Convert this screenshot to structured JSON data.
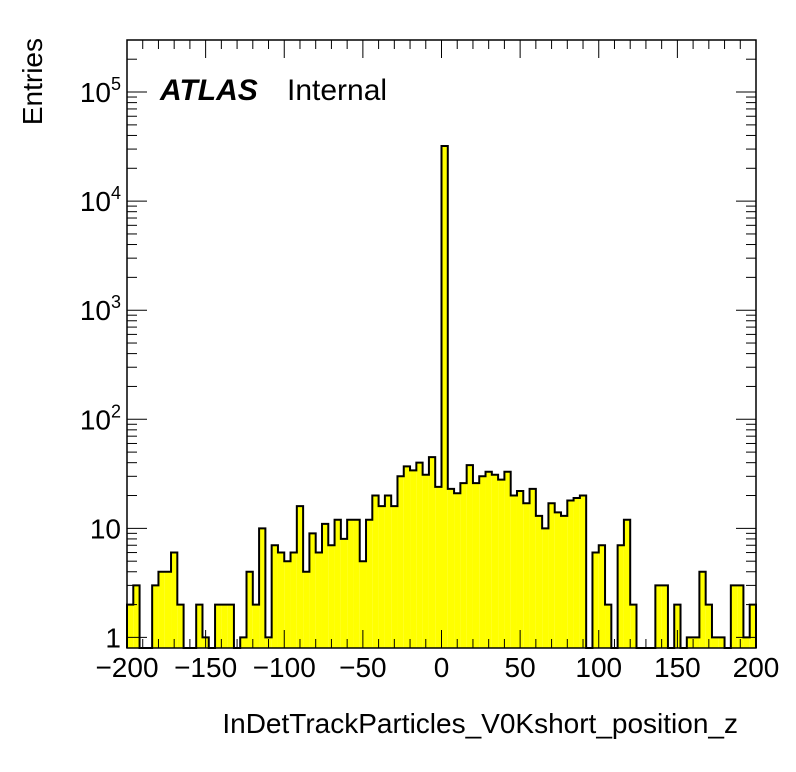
{
  "chart_data": {
    "type": "bar",
    "style": "histogram",
    "xlabel": "InDetTrackParticles_V0Kshort_position_z",
    "ylabel": "Entries",
    "experiment_label": "ATLAS",
    "status_label": "Internal",
    "xlim": [
      -200,
      200
    ],
    "ylim": [
      0.8,
      300000
    ],
    "y_scale": "log",
    "bin_width": 4,
    "x_ticks": [
      -200,
      -150,
      -100,
      -50,
      0,
      50,
      100,
      150,
      200
    ],
    "x_tick_labels": [
      "−200",
      "−150",
      "−100",
      "−50",
      "0",
      "50",
      "100",
      "150",
      "200"
    ],
    "y_ticks": [
      {
        "value": 1,
        "base": "1",
        "exp": ""
      },
      {
        "value": 10,
        "base": "10",
        "exp": ""
      },
      {
        "value": 100,
        "base": "10",
        "exp": "2"
      },
      {
        "value": 1000,
        "base": "10",
        "exp": "3"
      },
      {
        "value": 10000,
        "base": "10",
        "exp": "4"
      },
      {
        "value": 100000,
        "base": "10",
        "exp": "5"
      }
    ],
    "fill_color": "#ffff00",
    "line_color": "#000000",
    "bin_low_edges": [
      -200,
      -196,
      -192,
      -188,
      -184,
      -180,
      -176,
      -172,
      -168,
      -164,
      -160,
      -156,
      -152,
      -148,
      -144,
      -140,
      -136,
      -132,
      -128,
      -124,
      -120,
      -116,
      -112,
      -108,
      -104,
      -100,
      -96,
      -92,
      -88,
      -84,
      -80,
      -76,
      -72,
      -68,
      -64,
      -60,
      -56,
      -52,
      -48,
      -44,
      -40,
      -36,
      -32,
      -28,
      -24,
      -20,
      -16,
      -12,
      -8,
      -4,
      0,
      4,
      8,
      12,
      16,
      20,
      24,
      28,
      32,
      36,
      40,
      44,
      48,
      52,
      56,
      60,
      64,
      68,
      72,
      76,
      80,
      84,
      88,
      92,
      96,
      100,
      104,
      108,
      112,
      116,
      120,
      124,
      128,
      132,
      136,
      140,
      144,
      148,
      152,
      156,
      160,
      164,
      168,
      172,
      176,
      180,
      184,
      188,
      192,
      196
    ],
    "values": [
      2,
      3,
      0,
      0,
      3,
      4,
      4,
      6,
      2,
      0,
      0,
      2,
      1,
      0,
      2,
      2,
      2,
      0,
      1,
      4,
      2,
      10,
      1,
      7,
      6,
      5,
      6,
      16,
      4,
      9,
      6,
      11,
      7,
      12,
      8,
      12,
      12,
      5,
      12,
      20,
      16,
      20,
      16,
      30,
      37,
      34,
      40,
      31,
      45,
      24,
      32000,
      23,
      21,
      26,
      38,
      26,
      30,
      33,
      31,
      28,
      33,
      20,
      22,
      17,
      23,
      13,
      10,
      17,
      14,
      13,
      18,
      19,
      20,
      0,
      6,
      7,
      2,
      0,
      7,
      12,
      2,
      0,
      0,
      0,
      3,
      3,
      0,
      2,
      0,
      1,
      1,
      4,
      2,
      1,
      1,
      0,
      3,
      3,
      1,
      2
    ]
  }
}
